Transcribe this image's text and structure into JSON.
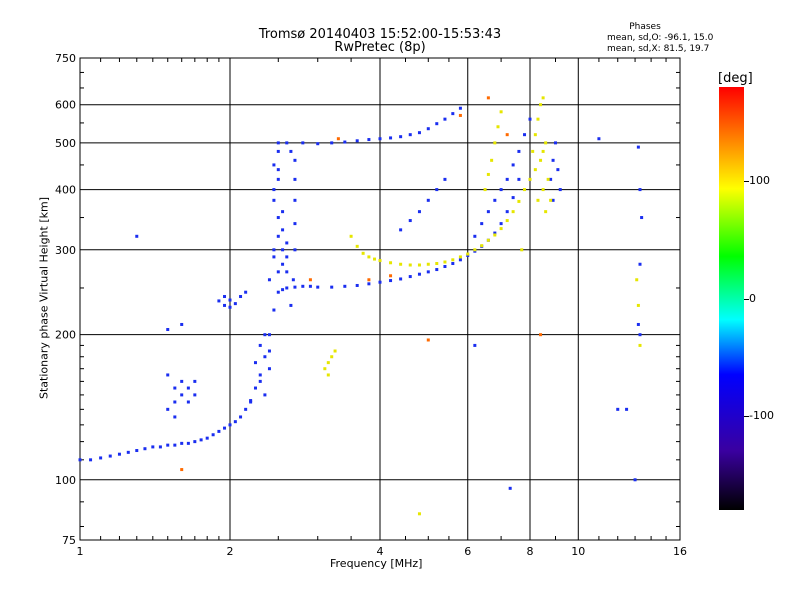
{
  "header": {
    "title_line1": "Tromsø 20140403 15:52:00-15:53:43",
    "title_line2": "RwPretec (8p)"
  },
  "phase_stats": {
    "title": "Phases",
    "o_mode": "mean, sd,O: -96.1, 15.0",
    "x_mode": "mean, sd,X: 81.5, 19.7"
  },
  "colorbar": {
    "label": "[deg]",
    "ticks": [
      "100",
      "0",
      "-100"
    ],
    "tick_values": [
      100,
      0,
      -100
    ],
    "range": [
      -180,
      180
    ],
    "colors": [
      "#ff0000",
      "#ffff00",
      "#00ff00",
      "#00ffff",
      "#0000ff",
      "#000000"
    ]
  },
  "chart_data": {
    "type": "scatter",
    "xscale": "log",
    "yscale": "log",
    "xlabel": "Frequency [MHz]",
    "ylabel": "Stationary phase Virtual Height [km]",
    "xlim": [
      1,
      16
    ],
    "ylim": [
      75,
      750
    ],
    "xticks": [
      1,
      2,
      4,
      6,
      8,
      10,
      16
    ],
    "yticks": [
      75,
      100,
      200,
      300,
      400,
      500,
      600,
      750
    ],
    "grid": true,
    "series": [
      {
        "mode": "O",
        "color": "#1a2ef0",
        "points": [
          [
            1.0,
            110
          ],
          [
            1.05,
            110
          ],
          [
            1.1,
            111
          ],
          [
            1.15,
            112
          ],
          [
            1.2,
            113
          ],
          [
            1.25,
            114
          ],
          [
            1.3,
            115
          ],
          [
            1.35,
            116
          ],
          [
            1.4,
            117
          ],
          [
            1.45,
            117
          ],
          [
            1.5,
            118
          ],
          [
            1.55,
            118
          ],
          [
            1.6,
            119
          ],
          [
            1.65,
            119
          ],
          [
            1.7,
            120
          ],
          [
            1.75,
            121
          ],
          [
            1.8,
            122
          ],
          [
            1.85,
            124
          ],
          [
            1.9,
            126
          ],
          [
            1.95,
            128
          ],
          [
            2.0,
            130
          ],
          [
            2.05,
            132
          ],
          [
            2.1,
            135
          ],
          [
            2.15,
            140
          ],
          [
            2.2,
            146
          ],
          [
            2.25,
            155
          ],
          [
            2.3,
            165
          ],
          [
            2.35,
            180
          ],
          [
            2.4,
            200
          ],
          [
            2.45,
            225
          ],
          [
            2.5,
            245
          ],
          [
            2.55,
            248
          ],
          [
            2.6,
            250
          ],
          [
            2.7,
            251
          ],
          [
            2.8,
            252
          ],
          [
            2.9,
            252
          ],
          [
            3.0,
            251
          ],
          [
            3.2,
            251
          ],
          [
            3.4,
            252
          ],
          [
            3.6,
            253
          ],
          [
            3.8,
            255
          ],
          [
            4.0,
            257
          ],
          [
            4.2,
            259
          ],
          [
            4.4,
            261
          ],
          [
            4.6,
            264
          ],
          [
            4.8,
            267
          ],
          [
            5.0,
            270
          ],
          [
            5.2,
            273
          ],
          [
            5.4,
            277
          ],
          [
            5.6,
            281
          ],
          [
            5.8,
            286
          ],
          [
            6.0,
            292
          ],
          [
            6.2,
            298
          ],
          [
            6.4,
            305
          ],
          [
            6.6,
            314
          ],
          [
            6.8,
            325
          ],
          [
            7.0,
            340
          ],
          [
            7.2,
            360
          ],
          [
            7.4,
            385
          ],
          [
            7.6,
            420
          ],
          [
            2.45,
            300
          ],
          [
            2.5,
            320
          ],
          [
            2.5,
            350
          ],
          [
            2.45,
            380
          ],
          [
            2.5,
            420
          ],
          [
            2.45,
            450
          ],
          [
            2.5,
            480
          ],
          [
            2.55,
            300
          ],
          [
            2.6,
            270
          ],
          [
            2.5,
            270
          ],
          [
            2.55,
            330
          ],
          [
            2.6,
            310
          ],
          [
            2.45,
            400
          ],
          [
            2.5,
            440
          ],
          [
            2.55,
            360
          ],
          [
            2.4,
            260
          ],
          [
            2.5,
            500
          ],
          [
            2.45,
            290
          ],
          [
            2.55,
            280
          ],
          [
            2.6,
            290
          ],
          [
            2.35,
            200
          ],
          [
            2.3,
            190
          ],
          [
            2.4,
            170
          ],
          [
            2.3,
            160
          ],
          [
            2.35,
            150
          ],
          [
            2.4,
            185
          ],
          [
            2.25,
            175
          ],
          [
            2.2,
            145
          ],
          [
            1.9,
            235
          ],
          [
            1.95,
            230
          ],
          [
            2.0,
            228
          ],
          [
            2.05,
            232
          ],
          [
            2.1,
            240
          ],
          [
            2.15,
            245
          ],
          [
            1.95,
            240
          ],
          [
            2.0,
            236
          ],
          [
            1.5,
            140
          ],
          [
            1.55,
            145
          ],
          [
            1.6,
            150
          ],
          [
            1.65,
            155
          ],
          [
            1.7,
            150
          ],
          [
            1.6,
            160
          ],
          [
            1.65,
            145
          ],
          [
            1.55,
            135
          ],
          [
            1.5,
            165
          ],
          [
            1.7,
            160
          ],
          [
            1.55,
            155
          ],
          [
            2.6,
            500
          ],
          [
            2.8,
            500
          ],
          [
            3.0,
            498
          ],
          [
            3.2,
            500
          ],
          [
            3.4,
            502
          ],
          [
            3.6,
            505
          ],
          [
            3.8,
            508
          ],
          [
            4.0,
            510
          ],
          [
            4.2,
            512
          ],
          [
            4.4,
            515
          ],
          [
            4.6,
            520
          ],
          [
            4.8,
            525
          ],
          [
            5.0,
            535
          ],
          [
            5.2,
            548
          ],
          [
            5.4,
            560
          ],
          [
            5.6,
            575
          ],
          [
            5.8,
            590
          ],
          [
            2.65,
            480
          ],
          [
            2.7,
            460
          ],
          [
            2.7,
            420
          ],
          [
            2.7,
            380
          ],
          [
            2.7,
            340
          ],
          [
            2.7,
            300
          ],
          [
            2.68,
            260
          ],
          [
            2.65,
            230
          ],
          [
            4.4,
            330
          ],
          [
            4.6,
            345
          ],
          [
            4.8,
            360
          ],
          [
            5.0,
            380
          ],
          [
            5.2,
            400
          ],
          [
            5.4,
            420
          ],
          [
            6.2,
            320
          ],
          [
            6.4,
            340
          ],
          [
            6.6,
            360
          ],
          [
            6.8,
            380
          ],
          [
            7.0,
            400
          ],
          [
            7.2,
            420
          ],
          [
            7.4,
            450
          ],
          [
            7.6,
            480
          ],
          [
            7.8,
            520
          ],
          [
            8.0,
            560
          ],
          [
            8.8,
            420
          ],
          [
            8.9,
            460
          ],
          [
            9.0,
            500
          ],
          [
            9.1,
            440
          ],
          [
            9.2,
            400
          ],
          [
            8.9,
            380
          ],
          [
            11.0,
            510
          ],
          [
            13.2,
            490
          ],
          [
            13.3,
            400
          ],
          [
            13.4,
            350
          ],
          [
            13.3,
            280
          ],
          [
            13.2,
            210
          ],
          [
            13.3,
            200
          ],
          [
            13.0,
            100
          ],
          [
            12.5,
            140
          ],
          [
            12.0,
            140
          ],
          [
            1.3,
            320
          ],
          [
            1.5,
            205
          ],
          [
            1.6,
            210
          ],
          [
            6.2,
            190
          ],
          [
            7.3,
            96
          ]
        ]
      },
      {
        "mode": "X",
        "color": "#e6e600",
        "points": [
          [
            3.5,
            320
          ],
          [
            3.6,
            305
          ],
          [
            3.7,
            295
          ],
          [
            3.8,
            290
          ],
          [
            3.9,
            287
          ],
          [
            4.0,
            285
          ],
          [
            4.2,
            282
          ],
          [
            4.4,
            280
          ],
          [
            4.6,
            279
          ],
          [
            4.8,
            279
          ],
          [
            5.0,
            280
          ],
          [
            5.2,
            281
          ],
          [
            5.4,
            283
          ],
          [
            5.6,
            286
          ],
          [
            5.8,
            290
          ],
          [
            6.0,
            294
          ],
          [
            6.2,
            300
          ],
          [
            6.4,
            306
          ],
          [
            6.6,
            314
          ],
          [
            6.8,
            322
          ],
          [
            7.0,
            332
          ],
          [
            7.2,
            345
          ],
          [
            7.4,
            360
          ],
          [
            7.6,
            378
          ],
          [
            7.8,
            400
          ],
          [
            8.0,
            420
          ],
          [
            8.2,
            440
          ],
          [
            8.4,
            460
          ],
          [
            8.5,
            480
          ],
          [
            8.6,
            500
          ],
          [
            8.3,
            560
          ],
          [
            8.4,
            600
          ],
          [
            8.5,
            620
          ],
          [
            8.2,
            520
          ],
          [
            8.1,
            480
          ],
          [
            8.3,
            380
          ],
          [
            8.5,
            400
          ],
          [
            8.7,
            420
          ],
          [
            8.8,
            380
          ],
          [
            8.6,
            360
          ],
          [
            6.8,
            500
          ],
          [
            6.9,
            540
          ],
          [
            7.0,
            580
          ],
          [
            6.7,
            460
          ],
          [
            6.6,
            430
          ],
          [
            6.5,
            400
          ],
          [
            3.15,
            175
          ],
          [
            3.2,
            180
          ],
          [
            3.1,
            170
          ],
          [
            3.25,
            185
          ],
          [
            3.15,
            165
          ],
          [
            13.3,
            190
          ],
          [
            13.2,
            230
          ],
          [
            13.1,
            260
          ],
          [
            4.8,
            85
          ],
          [
            7.7,
            300
          ]
        ]
      },
      {
        "mode": "other",
        "color": "#ff6a00",
        "points": [
          [
            3.8,
            260
          ],
          [
            4.2,
            265
          ],
          [
            5.0,
            195
          ],
          [
            6.6,
            620
          ],
          [
            7.2,
            520
          ],
          [
            8.4,
            200
          ],
          [
            3.3,
            510
          ],
          [
            2.9,
            260
          ],
          [
            5.8,
            570
          ],
          [
            1.6,
            105
          ]
        ]
      }
    ]
  }
}
